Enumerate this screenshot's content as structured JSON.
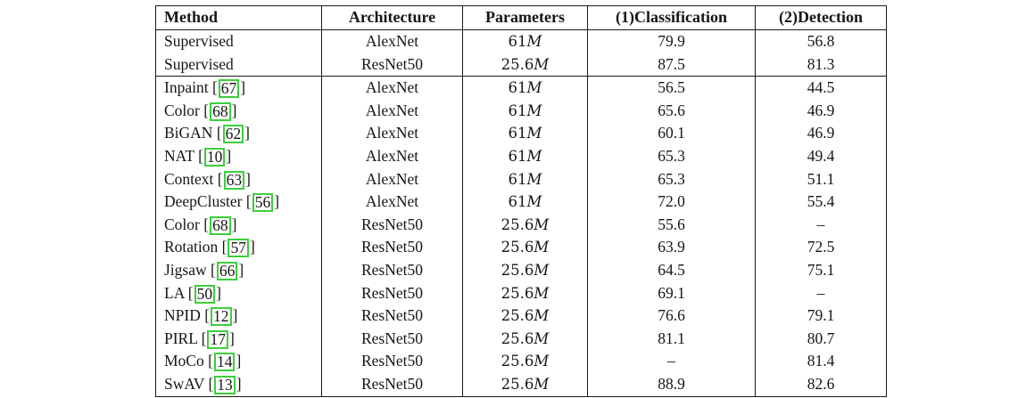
{
  "page": {
    "background_color": "#ffffff",
    "text_color": "#161616"
  },
  "table": {
    "citation_box_color": "#3ccf3c",
    "columns": [
      {
        "label": "Method"
      },
      {
        "label": "Architecture"
      },
      {
        "label": "Parameters"
      },
      {
        "label": "(1)Classification"
      },
      {
        "label": "(2)Detection"
      }
    ],
    "groups": [
      {
        "rows": [
          {
            "method": "Supervised",
            "cite": null,
            "architecture": "AlexNet",
            "param_value": "61",
            "param_unit": "M",
            "classification": "79.9",
            "detection": "56.8"
          },
          {
            "method": "Supervised",
            "cite": null,
            "architecture": "ResNet50",
            "param_value": "25.6",
            "param_unit": "M",
            "classification": "87.5",
            "detection": "81.3"
          }
        ]
      },
      {
        "rows": [
          {
            "method": "Inpaint",
            "cite": "67",
            "architecture": "AlexNet",
            "param_value": "61",
            "param_unit": "M",
            "classification": "56.5",
            "detection": "44.5"
          },
          {
            "method": "Color",
            "cite": "68",
            "architecture": "AlexNet",
            "param_value": "61",
            "param_unit": "M",
            "classification": "65.6",
            "detection": "46.9"
          },
          {
            "method": "BiGAN",
            "cite": "62",
            "architecture": "AlexNet",
            "param_value": "61",
            "param_unit": "M",
            "classification": "60.1",
            "detection": "46.9"
          },
          {
            "method": "NAT",
            "cite": "10",
            "architecture": "AlexNet",
            "param_value": "61",
            "param_unit": "M",
            "classification": "65.3",
            "detection": "49.4"
          },
          {
            "method": "Context",
            "cite": "63",
            "architecture": "AlexNet",
            "param_value": "61",
            "param_unit": "M",
            "classification": "65.3",
            "detection": "51.1"
          },
          {
            "method": "DeepCluster",
            "cite": "56",
            "architecture": "AlexNet",
            "param_value": "61",
            "param_unit": "M",
            "classification": "72.0",
            "detection": "55.4"
          },
          {
            "method": "Color",
            "cite": "68",
            "architecture": "ResNet50",
            "param_value": "25.6",
            "param_unit": "M",
            "classification": "55.6",
            "detection": "–"
          },
          {
            "method": "Rotation",
            "cite": "57",
            "architecture": "ResNet50",
            "param_value": "25.6",
            "param_unit": "M",
            "classification": "63.9",
            "detection": "72.5"
          },
          {
            "method": "Jigsaw",
            "cite": "66",
            "architecture": "ResNet50",
            "param_value": "25.6",
            "param_unit": "M",
            "classification": "64.5",
            "detection": "75.1"
          },
          {
            "method": "LA",
            "cite": "50",
            "architecture": "ResNet50",
            "param_value": "25.6",
            "param_unit": "M",
            "classification": "69.1",
            "detection": "–"
          },
          {
            "method": "NPID",
            "cite": "12",
            "architecture": "ResNet50",
            "param_value": "25.6",
            "param_unit": "M",
            "classification": "76.6",
            "detection": "79.1"
          },
          {
            "method": "PIRL",
            "cite": "17",
            "architecture": "ResNet50",
            "param_value": "25.6",
            "param_unit": "M",
            "classification": "81.1",
            "detection": "80.7"
          },
          {
            "method": "MoCo",
            "cite": "14",
            "architecture": "ResNet50",
            "param_value": "25.6",
            "param_unit": "M",
            "classification": "–",
            "detection": "81.4"
          },
          {
            "method": "SwAV",
            "cite": "13",
            "architecture": "ResNet50",
            "param_value": "25.6",
            "param_unit": "M",
            "classification": "88.9",
            "detection": "82.6"
          }
        ]
      }
    ]
  }
}
